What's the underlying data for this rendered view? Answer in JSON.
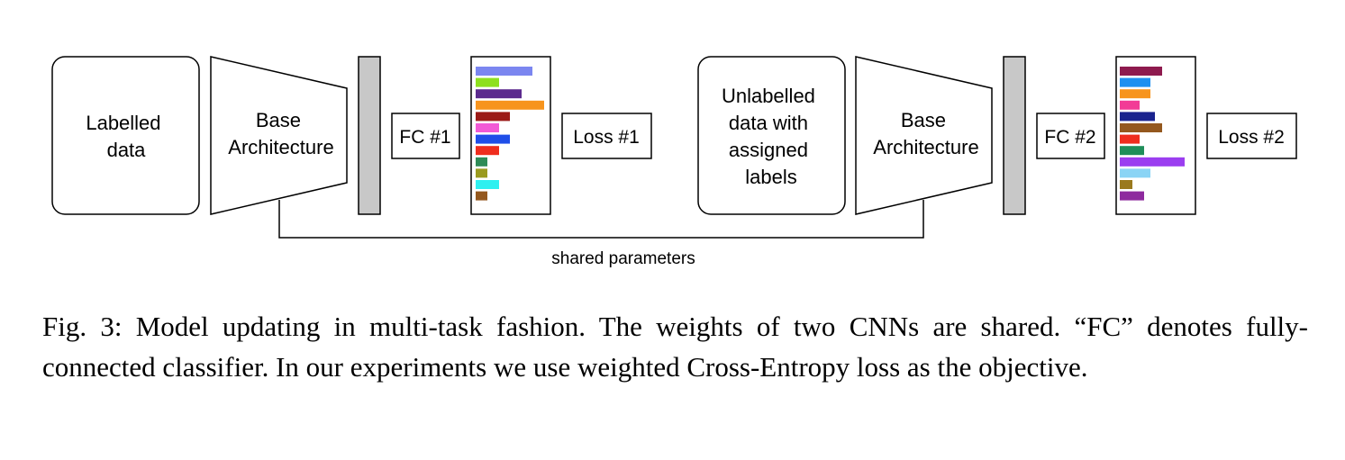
{
  "left": {
    "input_lines": [
      "Labelled",
      "data"
    ],
    "base_lines": [
      "Base",
      "Architecture"
    ],
    "fc": "FC #1",
    "loss": "Loss #1",
    "bars": [
      {
        "color": "#7b86f0",
        "value": 63
      },
      {
        "color": "#8ee01e",
        "value": 26
      },
      {
        "color": "#5b2a8e",
        "value": 51
      },
      {
        "color": "#f7941d",
        "value": 76
      },
      {
        "color": "#9b1a17",
        "value": 38
      },
      {
        "color": "#f25ad6",
        "value": 26
      },
      {
        "color": "#1f4ee8",
        "value": 38
      },
      {
        "color": "#ef2d1e",
        "value": 26
      },
      {
        "color": "#2e8b57",
        "value": 13
      },
      {
        "color": "#9a9a1e",
        "value": 13
      },
      {
        "color": "#2ef0f0",
        "value": 26
      },
      {
        "color": "#94581e",
        "value": 13
      }
    ]
  },
  "right": {
    "input_lines": [
      "Unlabelled",
      "data with",
      "assigned",
      "labels"
    ],
    "base_lines": [
      "Base",
      "Architecture"
    ],
    "fc": "FC #2",
    "loss": "Loss #2",
    "bars": [
      {
        "color": "#8e1a4e",
        "value": 47
      },
      {
        "color": "#1e90f0",
        "value": 34
      },
      {
        "color": "#f7941d",
        "value": 34
      },
      {
        "color": "#f23c96",
        "value": 22
      },
      {
        "color": "#1a238e",
        "value": 39
      },
      {
        "color": "#94581e",
        "value": 47
      },
      {
        "color": "#ef2d1e",
        "value": 22
      },
      {
        "color": "#1f8e5a",
        "value": 27
      },
      {
        "color": "#9b3ef0",
        "value": 72
      },
      {
        "color": "#8ad4f5",
        "value": 34
      },
      {
        "color": "#9a7a1e",
        "value": 14
      },
      {
        "color": "#8e2a9e",
        "value": 27
      }
    ]
  },
  "shared_label": "shared parameters",
  "caption": "Fig. 3: Model updating in multi-task fashion. The weights of two CNNs are shared. “FC” denotes fully-connected classifier. In our experiments we use weighted Cross-Entropy loss as the objective."
}
